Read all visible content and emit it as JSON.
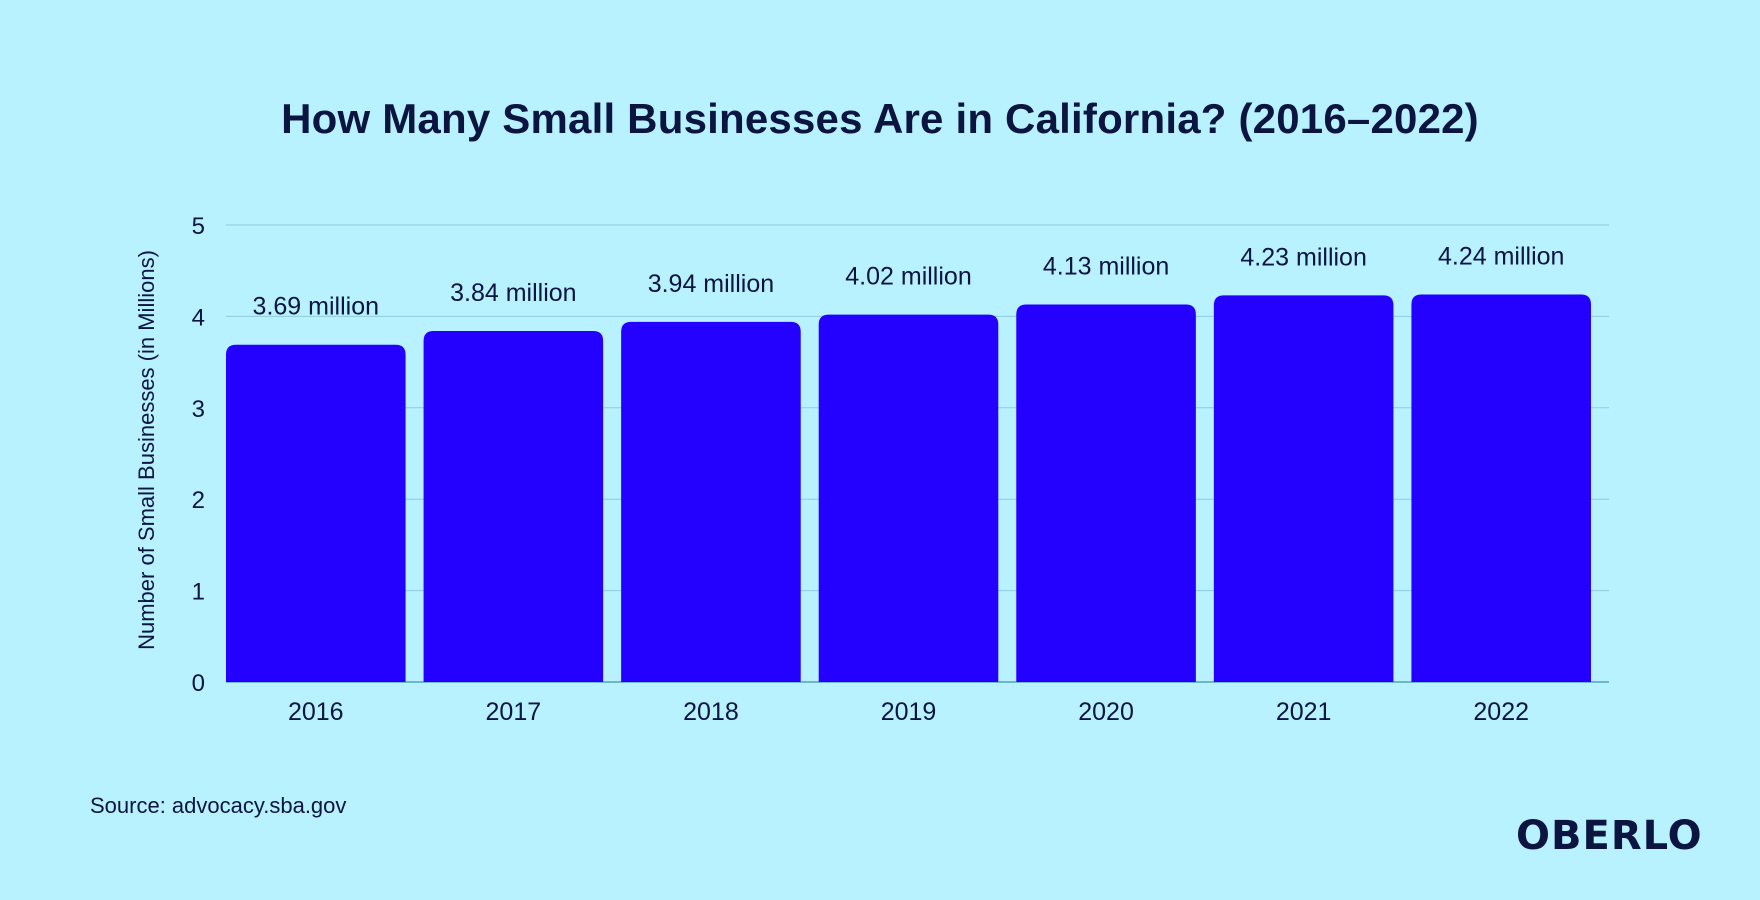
{
  "chart_data": {
    "type": "bar",
    "title": "How Many Small Businesses Are in California? (2016–2022)",
    "xlabel": "",
    "ylabel": "Number of Small Businesses (in Millions)",
    "categories": [
      "2016",
      "2017",
      "2018",
      "2019",
      "2020",
      "2021",
      "2022"
    ],
    "values": [
      3.69,
      3.84,
      3.94,
      4.02,
      4.13,
      4.23,
      4.24
    ],
    "data_labels": [
      "3.69 million",
      "3.84 million",
      "3.94 million",
      "4.02 million",
      "4.13 million",
      "4.23 million",
      "4.24 million"
    ],
    "ylim": [
      0,
      5
    ],
    "yticks": [
      "0",
      "1",
      "2",
      "3",
      "4",
      "5"
    ],
    "grid": true,
    "legend": "none",
    "colors": {
      "bar": "#2400ff",
      "background": "#b8f1ff",
      "text": "#0b1540",
      "grid": "#8fcbd9"
    }
  },
  "footer": {
    "source": "Source: advocacy.sba.gov",
    "logo_text": "OBERLO"
  }
}
